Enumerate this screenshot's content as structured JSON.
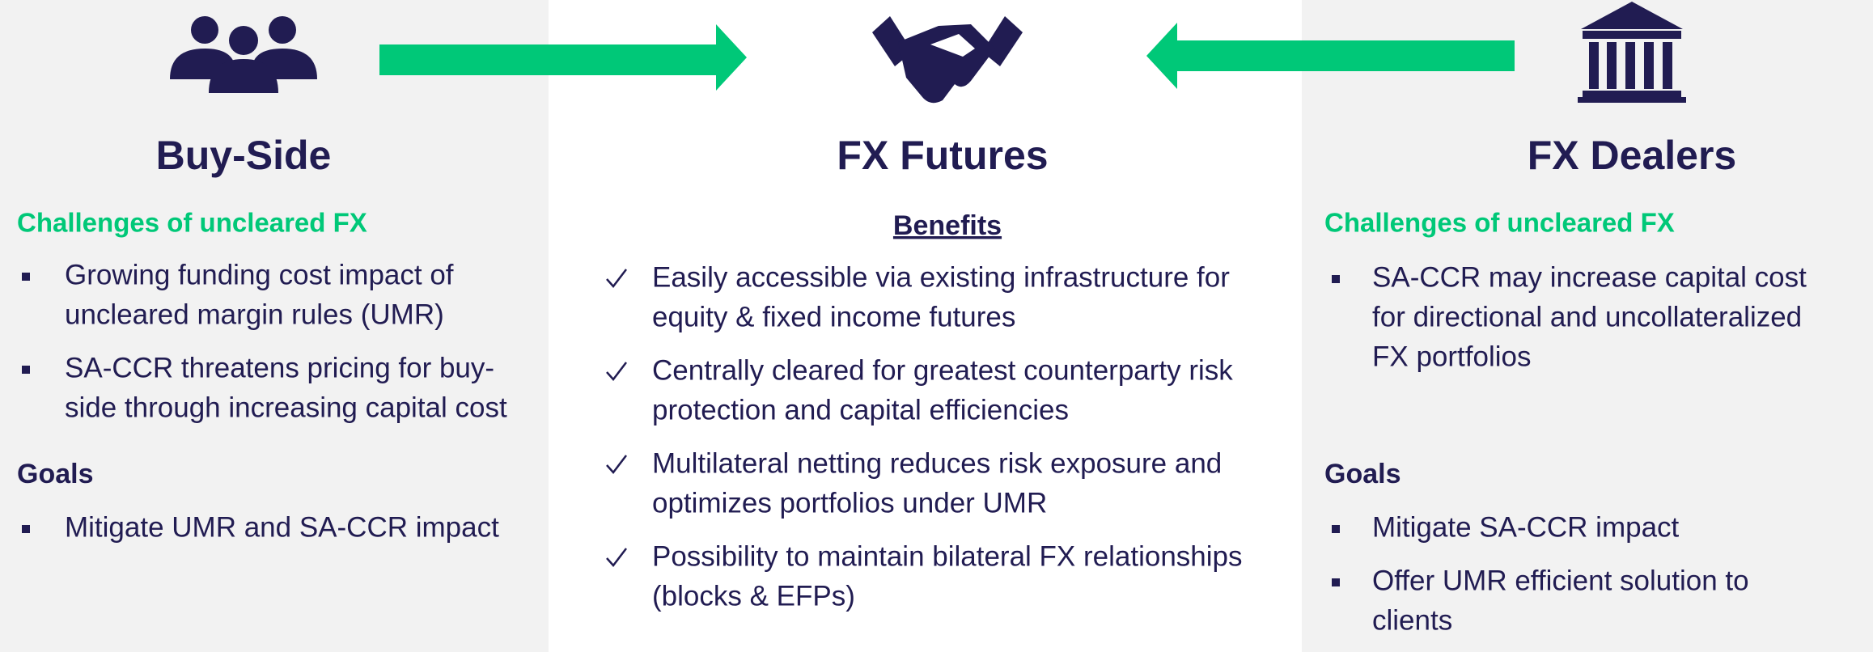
{
  "left": {
    "title": "Buy-Side",
    "challenges_heading": "Challenges of uncleared FX",
    "challenges": [
      [
        "Growing funding cost impact of",
        "uncleared margin rules (UMR)"
      ],
      [
        "SA-CCR threatens pricing for buy-",
        "side through increasing capital cost"
      ]
    ],
    "goals_heading": "Goals",
    "goals": [
      [
        "Mitigate UMR and SA-CCR impact"
      ]
    ]
  },
  "center": {
    "title": "FX Futures",
    "benefits_heading": "Benefits",
    "benefits": [
      [
        "Easily accessible via existing infrastructure for",
        "equity & fixed income futures"
      ],
      [
        "Centrally cleared for greatest counterparty risk",
        "protection and capital efficiencies"
      ],
      [
        "Multilateral netting reduces risk exposure and",
        "optimizes portfolios under UMR"
      ],
      [
        "Possibility to maintain bilateral FX relationships",
        "(blocks & EFPs)"
      ]
    ]
  },
  "right": {
    "title": "FX Dealers",
    "challenges_heading": "Challenges of uncleared FX",
    "challenges": [
      [
        "SA-CCR may increase capital cost",
        "for directional and uncollateralized",
        "FX portfolios"
      ]
    ],
    "goals_heading": "Goals",
    "goals": [
      [
        "Mitigate SA-CCR impact"
      ],
      [
        "Offer UMR efficient solution to",
        "clients"
      ]
    ]
  }
}
